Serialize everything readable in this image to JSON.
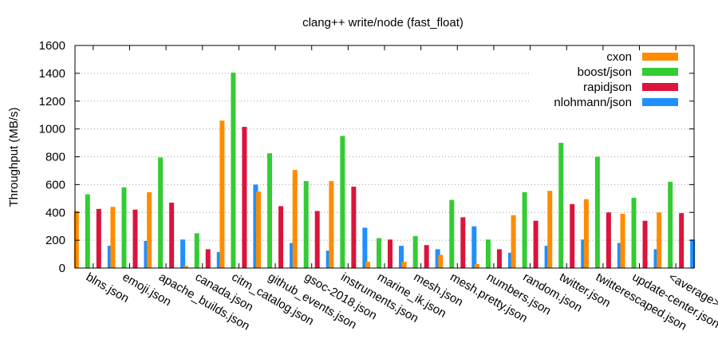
{
  "chart_data": {
    "type": "bar",
    "title": "clang++ write/node (fast_float)",
    "ylabel": "Throughput (MB/s)",
    "xlabel": "",
    "ylim": [
      0,
      1600
    ],
    "yticks": [
      0,
      200,
      400,
      600,
      800,
      1000,
      1200,
      1400,
      1600
    ],
    "grid": true,
    "legend_position": "top-right",
    "categories": [
      "blns.json",
      "emoji.json",
      "apache_builds.json",
      "canada.json",
      "citm_catalog.json",
      "github_events.json",
      "gsoc-2018.json",
      "instruments.json",
      "marine_ik.json",
      "mesh.json",
      "mesh.pretty.json",
      "numbers.json",
      "random.json",
      "twitter.json",
      "twitterescaped.json",
      "update-center.json",
      "<average>"
    ],
    "series": [
      {
        "name": "cxon",
        "color": "#ff8c00",
        "values": [
          410,
          440,
          545,
          15,
          1060,
          550,
          705,
          625,
          45,
          45,
          95,
          30,
          380,
          555,
          495,
          390,
          400
        ]
      },
      {
        "name": "boost/json",
        "color": "#33cc33",
        "values": [
          530,
          580,
          795,
          250,
          1405,
          825,
          625,
          950,
          215,
          230,
          490,
          205,
          545,
          900,
          800,
          505,
          620
        ]
      },
      {
        "name": "rapidjson",
        "color": "#dc143c",
        "values": [
          425,
          420,
          470,
          135,
          1015,
          445,
          410,
          585,
          205,
          165,
          365,
          135,
          340,
          460,
          400,
          340,
          395
        ]
      },
      {
        "name": "nlohmann/json",
        "color": "#1e90ff",
        "values": [
          160,
          195,
          205,
          115,
          600,
          180,
          125,
          290,
          160,
          135,
          300,
          110,
          160,
          205,
          180,
          135,
          205
        ]
      }
    ]
  }
}
